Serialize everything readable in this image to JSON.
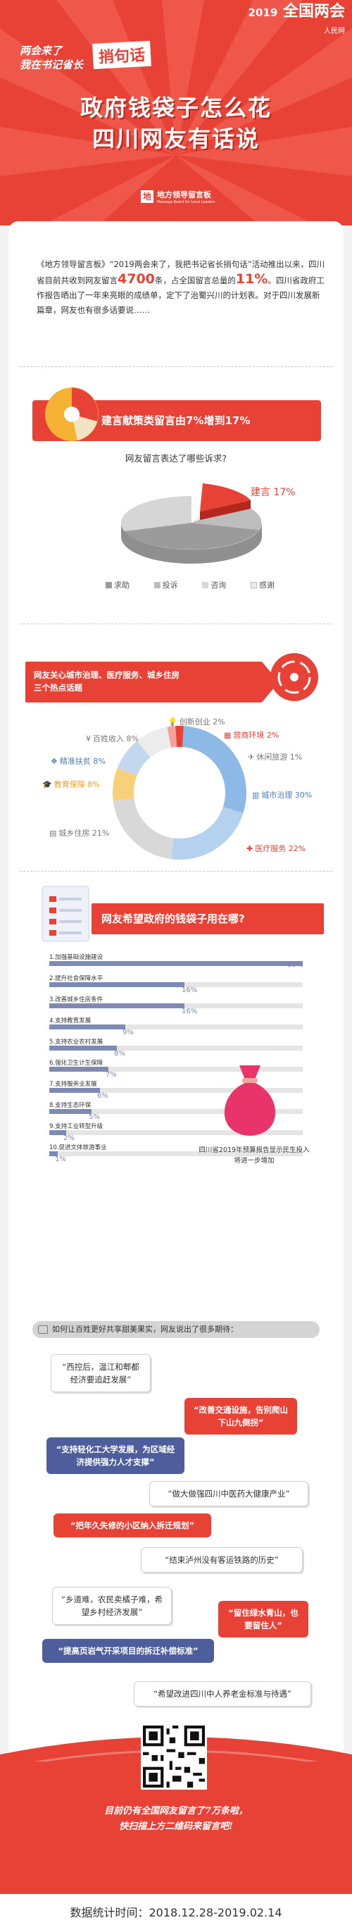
{
  "header": {
    "badge_year": "2019",
    "badge_text": "全国两会",
    "badge_sub": "人民网",
    "slogan_line1": "两会来了",
    "slogan_line2": "我在书记省长",
    "slogan_big": "捎句话",
    "title_line1": "政府钱袋子怎么花",
    "title_line2": "四川网友有话说",
    "logo_name": "地方领导留言板",
    "logo_sub": "Message Board for Local Leaders"
  },
  "intro": {
    "part1": "《地方领导留言板》“2019两会来了，我把书记省长捎句话”活动推出以来，四川省目前共收到网友留言",
    "num1": "4700",
    "part2": "条，占全国留言总量的",
    "num2": "11%",
    "part3": "。四川省政府工作报告晒出了一年来亮眼的成绩单，定下了治蜀兴川的计划表。对于四川发展新篇章，网友也有很多话要说……"
  },
  "section1": {
    "title": "建言献策类留言由7%增到17%",
    "question": "网友留言表达了哪些诉求?",
    "highlight_label": "建言 17%",
    "legend": [
      "求助",
      "投诉",
      "咨询",
      "感谢"
    ],
    "colors": {
      "accent": "#e84236",
      "help": "#9b9b9b",
      "complaint": "#bdbdbd",
      "consult": "#d6d6d6",
      "thanks": "#ececec"
    }
  },
  "section2": {
    "title_line1": "网友关心城市治理、医疗服务、城乡住房",
    "title_line2": "三个热点话题",
    "labels": {
      "city": "城市治理 30%",
      "medical": "医疗服务 22%",
      "housing": "城乡住房 21%",
      "education": "教育保障 8%",
      "poverty": "精准扶贫 8%",
      "income": "百姓收入 8%",
      "innovation": "创新创业 2%",
      "environment": "营商环境 2%",
      "tourism": "休闲旅游 1%"
    }
  },
  "section3": {
    "title": "网友希望政府的钱袋子用在哪?",
    "bag_caption_line1": "四川省2019年预算报告显示民生投入",
    "bag_caption_line2": "将进一步增加"
  },
  "chart_data": {
    "type": "bar",
    "categories": [
      "1.加强基础设施建设",
      "2.提升社会保障水平",
      "3.改善城乡住房条件",
      "4.支持教育发展",
      "5.支持农业农村发展",
      "6.强化卫生计生保障",
      "7.支持服务业发展",
      "8.支持生态环保",
      "9.支持工业转型升级",
      "10.促进文体旅游事业"
    ],
    "values": [
      30,
      16,
      16,
      9,
      8,
      7,
      6,
      5,
      2,
      1
    ],
    "value_labels": [
      "30%",
      "16%",
      "16%",
      "9%",
      "8%",
      "7%",
      "6%",
      "5%",
      "2%",
      "1%"
    ],
    "xlim": [
      0,
      30
    ]
  },
  "section4": {
    "header": "如何让百姓更好共享甜美果实，网友说出了很多期待：",
    "quotes": [
      {
        "text": "“西控后，温江和郫都经济要追赶发展”"
      },
      {
        "text": "“改善交通设施，告别爬山下山九倒拐”"
      },
      {
        "text": "“支持轻化工大学发展，为区域经济提供强力人才支撑”"
      },
      {
        "text": "“做大做强四川中医药大健康产业”"
      },
      {
        "text": "“把年久失修的小区纳入拆迁规划”"
      },
      {
        "text": "“结束泸州没有客运铁路的历史”"
      },
      {
        "text": "“乡道难，农民卖橘子难，希望乡村经济发展”"
      },
      {
        "text": "“留住绿水青山，也要留住人”"
      },
      {
        "text": "“提高页岩气开采项目的拆迁补偿标准”"
      },
      {
        "text": "“希望改进四川中人养老金标准与待遇”"
      }
    ]
  },
  "footer": {
    "line1": "目前仍有全国网友留言了7万条啦，",
    "line2": "快扫描上方二维码来留言吧!",
    "date": "数据统计时间：2018.12.28-2019.02.14"
  }
}
